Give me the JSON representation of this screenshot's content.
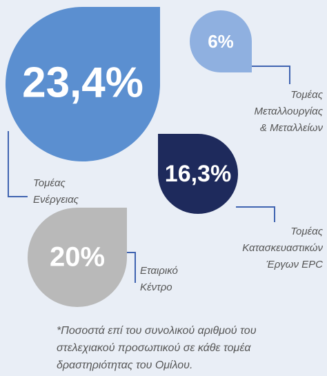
{
  "items": [
    {
      "value": "23,4%",
      "label": [
        "Τομέας",
        "Ενέργειας"
      ]
    },
    {
      "value": "6%",
      "label": [
        "Τομέας",
        "Μεταλλουργίας",
        "& Μεταλλείων"
      ]
    },
    {
      "value": "16,3%",
      "label": [
        "Τομέας",
        "Κατασκευαστικών",
        "Έργων EPC"
      ]
    },
    {
      "value": "20%",
      "label": [
        "Εταιρικό",
        "Κέντρο"
      ]
    }
  ],
  "footnote": [
    "*Ποσοστά επί του συνολικού αριθμού του",
    "στελεχιακού προσωπικού σε κάθε τομέα",
    "δραστηριότητας του Ομίλου."
  ]
}
